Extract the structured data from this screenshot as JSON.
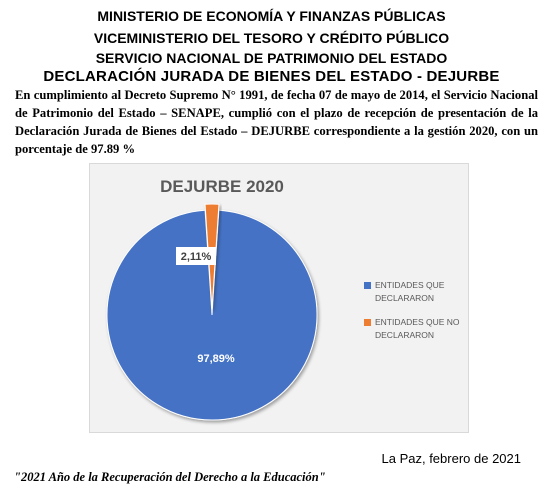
{
  "header": {
    "line1": "MINISTERIO DE ECONOMÍA Y FINANZAS PÚBLICAS",
    "line2": "VICEMINISTERIO DEL TESORO Y CRÉDITO PÚBLICO",
    "line3": "SERVICIO NACIONAL DE PATRIMONIO DEL ESTADO",
    "line4": "DECLARACIÓN JURADA DE BIENES DEL ESTADO - DEJURBE"
  },
  "paragraph": "En cumplimiento al Decreto Supremo N° 1991, de fecha 07 de mayo de 2014, el Servicio Nacional de Patrimonio del Estado – SENAPE, cumplió con el plazo de recepción de presentación de la Declaración Jurada de Bienes del Estado – DEJURBE correspondiente a la gestión 2020, con un porcentaje de 97.89 %",
  "chart_data": {
    "type": "pie",
    "title": "DEJURBE 2020",
    "categories": [
      "ENTIDADES QUE DECLARARON",
      "ENTIDADES QUE NO DECLARARON"
    ],
    "values": [
      97.89,
      2.11
    ],
    "labels": [
      "97,89%",
      "2,11%"
    ],
    "colors": [
      "#4472c4",
      "#ed7d31"
    ],
    "legend_position": "right",
    "legend_lines": [
      [
        "ENTIDADES QUE",
        "DECLARARON"
      ],
      [
        "ENTIDADES QUE NO",
        "DECLARARON"
      ]
    ]
  },
  "footer": {
    "place_date": "La Paz, febrero de 2021",
    "motto": "\"2021 Año de la Recuperación del Derecho a la Educación\""
  }
}
